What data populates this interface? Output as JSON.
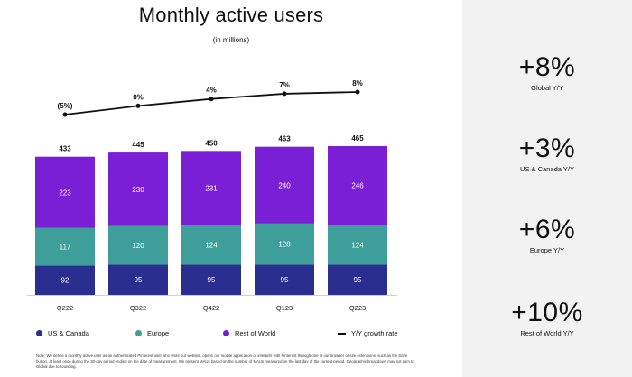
{
  "title": "Monthly active users",
  "subtitle": "(in millions)",
  "chart_data": {
    "type": "bar",
    "stacked": true,
    "categories": [
      "Q222",
      "Q322",
      "Q422",
      "Q123",
      "Q223"
    ],
    "series": [
      {
        "name": "US & Canada",
        "color": "#2a2f8f",
        "values": [
          92,
          95,
          95,
          95,
          95
        ]
      },
      {
        "name": "Europe",
        "color": "#3d9e9a",
        "values": [
          117,
          120,
          124,
          128,
          124
        ]
      },
      {
        "name": "Rest of World",
        "color": "#7a1fd6",
        "values": [
          223,
          230,
          231,
          240,
          246
        ]
      }
    ],
    "totals": [
      "433",
      "445",
      "450",
      "463",
      "465"
    ],
    "line": {
      "name": "Y/Y growth rate",
      "values": [
        -5,
        0,
        4,
        7,
        8
      ],
      "labels": [
        "(5%)",
        "0%",
        "4%",
        "7%",
        "8%"
      ]
    }
  },
  "legend": {
    "us_canada": "US & Canada",
    "europe": "Europe",
    "rest_of_world": "Rest of World",
    "yy": "Y/Y growth rate"
  },
  "note": "Note: We define a monthly active user as an authenticated Pinterest user who visits our website, opens our mobile application or interacts with Pinterest through one of our browser or site extensions, such as the Save button, at least once during the 30-day period ending on the date of measurement. We present MAUs based on the number of MAUs measured on the last day of the current period. Geographic breakdown may not sum to Global due to rounding.",
  "kpis": [
    {
      "value": "+8%",
      "label": "Global Y/Y"
    },
    {
      "value": "+3%",
      "label": "US & Canada Y/Y"
    },
    {
      "value": "+6%",
      "label": "Europe Y/Y"
    },
    {
      "value": "+10%",
      "label": "Rest of World Y/Y"
    }
  ]
}
